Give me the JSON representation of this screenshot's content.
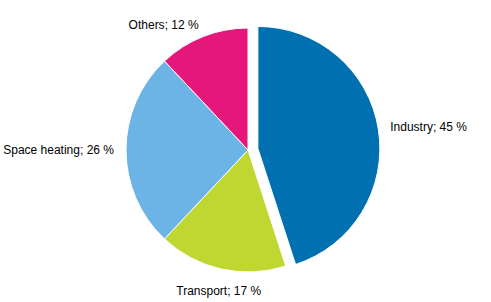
{
  "chart_data": {
    "type": "pie",
    "categories": [
      "Industry",
      "Transport",
      "Space heating",
      "Others"
    ],
    "values": [
      45,
      17,
      26,
      12
    ],
    "value_labels": [
      "; 45 %",
      "; 17 %",
      "; 26 %",
      "; 12 %"
    ],
    "colors": [
      "#0070b0",
      "#bfd730",
      "#6cb4e6",
      "#e6177a"
    ],
    "data_labels": true
  }
}
